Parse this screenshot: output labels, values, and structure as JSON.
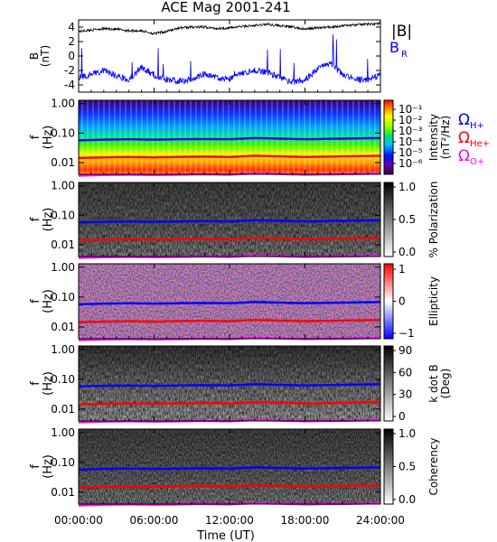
{
  "title": "ACE Mag 2001-241",
  "colors": {
    "b_magnitude": "#000000",
    "b_radial": "#0000ff",
    "omega_h": "#0000ff",
    "omega_he": "#ff0000",
    "omega_o": "#ff00ff"
  },
  "time_axis": {
    "label": "Time (UT)",
    "ticks": [
      "00:00:00",
      "06:00:00",
      "12:00:00",
      "18:00:00",
      "24:00:00"
    ],
    "range_hours": [
      0,
      24
    ]
  },
  "chart_data": [
    {
      "type": "line",
      "panel": "field",
      "ylabel_top": "B",
      "ylabel_bottom": "(nT)",
      "ylim": [
        -5,
        5
      ],
      "yticks": [
        "4",
        "2",
        "0",
        "-2",
        "-4"
      ],
      "x_hours": [
        0,
        1,
        2,
        3,
        4,
        5,
        6,
        7,
        8,
        9,
        10,
        11,
        12,
        13,
        14,
        15,
        16,
        17,
        18,
        19,
        20,
        21,
        22,
        23,
        24
      ],
      "series": [
        {
          "name": "|B|",
          "values": [
            3.4,
            3.6,
            3.8,
            3.7,
            3.5,
            3.5,
            3.1,
            3.4,
            3.9,
            4.0,
            4.0,
            3.8,
            3.9,
            4.1,
            4.2,
            4.4,
            4.2,
            4.0,
            3.7,
            3.9,
            4.0,
            4.2,
            4.3,
            4.4,
            4.5
          ]
        },
        {
          "name": "B_R",
          "values": [
            -3.0,
            -2.5,
            -2.0,
            -2.8,
            -3.2,
            -1.5,
            -2.6,
            -3.3,
            -3.5,
            -3.3,
            -2.4,
            -3.0,
            -3.2,
            -2.5,
            -2.0,
            -2.2,
            -3.0,
            -3.6,
            -3.3,
            -1.8,
            -1.0,
            -2.5,
            -3.2,
            -3.4,
            -2.6
          ]
        }
      ],
      "legend": {
        "b_mag_label": "|B|",
        "b_r_main": "B",
        "b_r_sub": "R"
      }
    },
    {
      "type": "heatmap",
      "panel": "intensity",
      "colormap": "rainbow",
      "ylabel_top": "f",
      "ylabel_bottom": "(Hz)",
      "ylim_log": [
        0.004,
        1.3
      ],
      "yticks": [
        "1.00",
        "0.10",
        "0.01"
      ],
      "colorbar_label_1": "Intensity",
      "colorbar_label_2": "(nT²/Hz)",
      "colorbar_ticks": [
        "10⁻¹",
        "10⁻²",
        "10⁻³",
        "10⁻⁴",
        "10⁻⁵",
        "10⁻⁶"
      ],
      "legend": {
        "h_main": "Ω",
        "h_sub": "H+",
        "he_main": "Ω",
        "he_sub": "He+",
        "o_main": "Ω",
        "o_sub": "O+"
      }
    },
    {
      "type": "heatmap",
      "panel": "polarization",
      "colormap": "gray",
      "ylabel_top": "f",
      "ylabel_bottom": "(Hz)",
      "ylim_log": [
        0.004,
        1.3
      ],
      "yticks": [
        "1.00",
        "0.10",
        "0.01"
      ],
      "colorbar_label_1": "% Polarization",
      "colorbar_ticks": [
        "1.0",
        "0.5",
        "0.0"
      ]
    },
    {
      "type": "heatmap",
      "panel": "ellipticity",
      "colormap": "bluewhitered",
      "ylabel_top": "f",
      "ylabel_bottom": "(Hz)",
      "ylim_log": [
        0.004,
        1.3
      ],
      "yticks": [
        "1.00",
        "0.10",
        "0.01"
      ],
      "colorbar_label_1": "Ellipticity",
      "colorbar_ticks": [
        "1",
        "0",
        "−1"
      ]
    },
    {
      "type": "heatmap",
      "panel": "kdotb",
      "colormap": "gray",
      "ylabel_top": "f",
      "ylabel_bottom": "(Hz)",
      "ylim_log": [
        0.004,
        1.3
      ],
      "yticks": [
        "1.00",
        "0.10",
        "0.01"
      ],
      "colorbar_label_1": "k dot B",
      "colorbar_label_2": "(Deg)",
      "colorbar_ticks": [
        "90",
        "60",
        "30",
        "0"
      ]
    },
    {
      "type": "heatmap",
      "panel": "coherency",
      "colormap": "gray",
      "ylabel_top": "f",
      "ylabel_bottom": "(Hz)",
      "ylim_log": [
        0.004,
        1.3
      ],
      "yticks": [
        "1.00",
        "0.10",
        "0.01"
      ],
      "colorbar_label_1": "Coherency",
      "colorbar_ticks": [
        "1.0",
        "0.5",
        "0.0"
      ]
    }
  ],
  "gyrofrequency_lines": {
    "x_hours": [
      0,
      2,
      4,
      6,
      8,
      10,
      12,
      14,
      16,
      18,
      20,
      22,
      24
    ],
    "omega_h_hz": [
      0.057,
      0.06,
      0.062,
      0.06,
      0.062,
      0.063,
      0.062,
      0.068,
      0.065,
      0.062,
      0.064,
      0.066,
      0.068
    ],
    "omega_he_hz": [
      0.0143,
      0.015,
      0.0155,
      0.015,
      0.0156,
      0.016,
      0.0155,
      0.017,
      0.0163,
      0.0155,
      0.016,
      0.0165,
      0.017
    ],
    "omega_o_hz": [
      0.0036,
      0.0038,
      0.0039,
      0.0038,
      0.0039,
      0.004,
      0.0039,
      0.0043,
      0.0041,
      0.0039,
      0.004,
      0.0041,
      0.0043
    ]
  }
}
